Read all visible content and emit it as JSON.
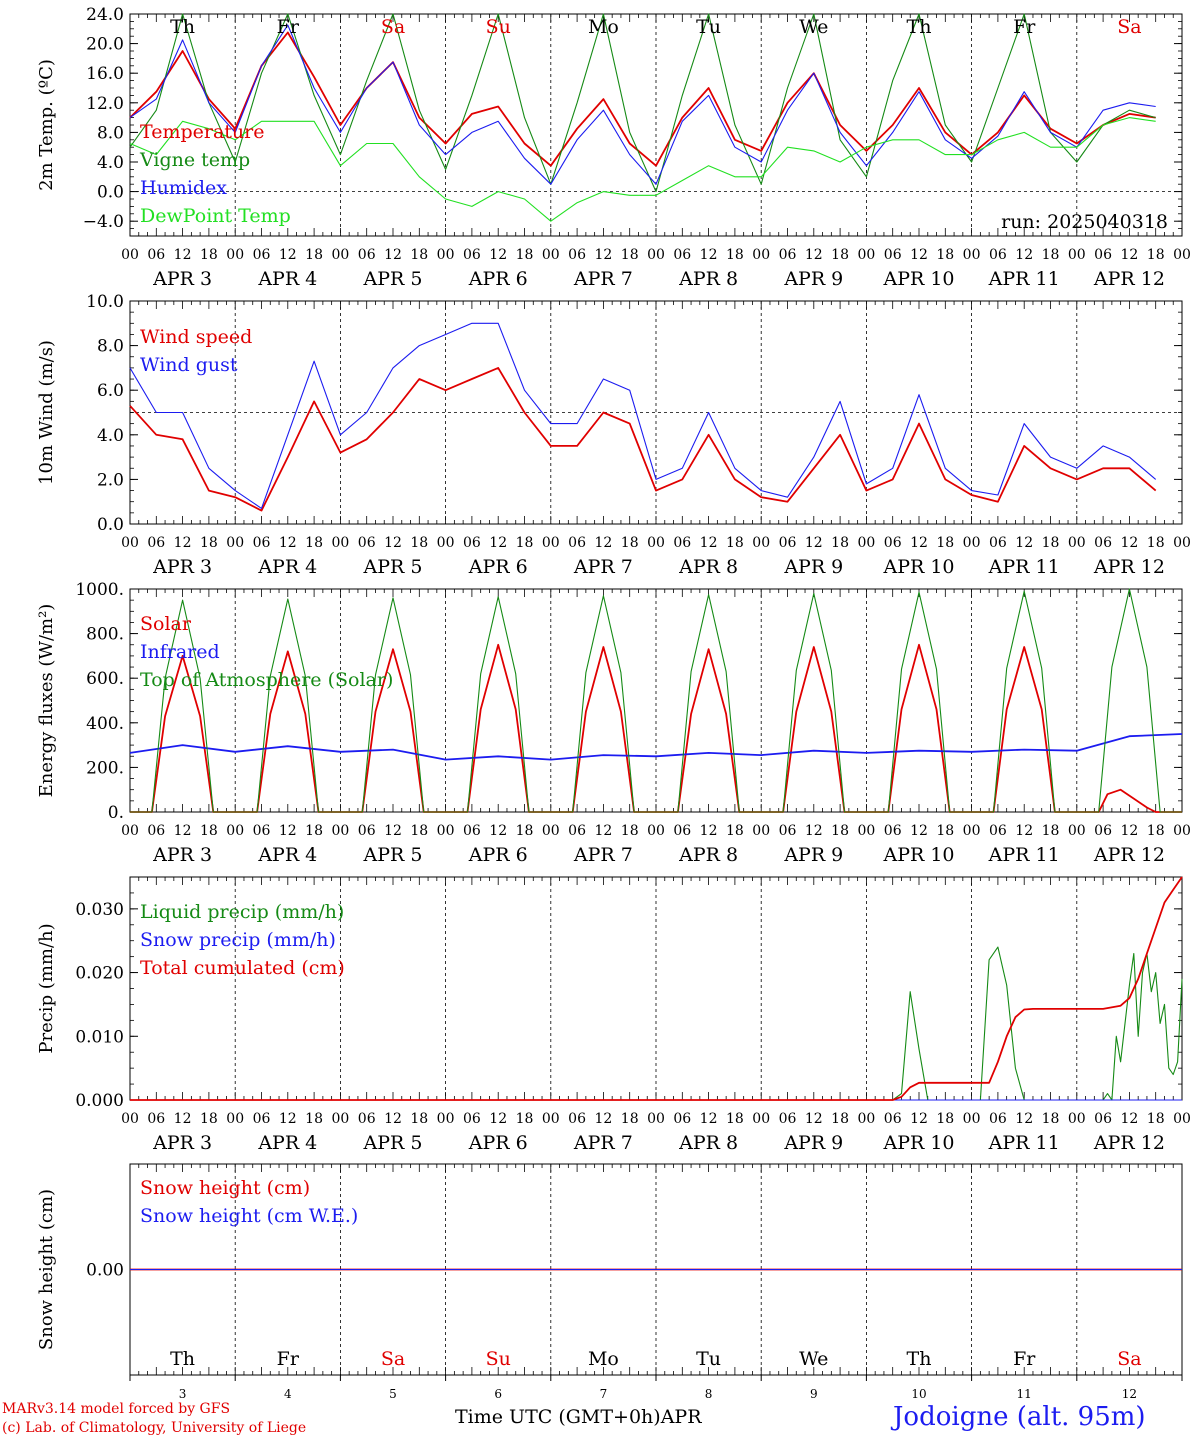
{
  "colors": {
    "red": "#e00000",
    "green": "#158a15",
    "blue": "#1c1cf0",
    "lightgreen": "#22e022",
    "axis": "#000000"
  },
  "days": [
    {
      "abbr": "Th",
      "num": "3",
      "weekend": false
    },
    {
      "abbr": "Fr",
      "num": "4",
      "weekend": false
    },
    {
      "abbr": "Sa",
      "num": "5",
      "weekend": true
    },
    {
      "abbr": "Su",
      "num": "6",
      "weekend": true
    },
    {
      "abbr": "Mo",
      "num": "7",
      "weekend": false
    },
    {
      "abbr": "Tu",
      "num": "8",
      "weekend": false
    },
    {
      "abbr": "We",
      "num": "9",
      "weekend": false
    },
    {
      "abbr": "Th",
      "num": "10",
      "weekend": false
    },
    {
      "abbr": "Fr",
      "num": "11",
      "weekend": false
    },
    {
      "abbr": "Sa",
      "num": "12",
      "weekend": true
    }
  ],
  "month": "APR",
  "hour_labels": [
    "00",
    "06",
    "12",
    "18"
  ],
  "hour_end_label": "00",
  "footer": {
    "model": "MARv3.14 model forced by GFS",
    "lab": "(c) Lab. of Climatology, University of Liege",
    "time_label": "Time UTC (GMT+0h)",
    "month_label": "APR",
    "station": "Jodoigne (alt. 95m)"
  },
  "chart_data": [
    {
      "type": "line",
      "ylabel": "2m Temp. (ºC)",
      "ylim": [
        -6,
        24
      ],
      "yticks": [
        24,
        20,
        16,
        12,
        8,
        4,
        0,
        -4
      ],
      "ytick_labels": [
        "24.0",
        "20.0",
        "16.0",
        "12.0",
        "8.0",
        "4.0",
        "0.0",
        "−4.0"
      ],
      "zero_line": 0,
      "annotation": "run: 2025040318",
      "legend_placement": "left",
      "series": [
        {
          "name": "Temperature",
          "color": "red",
          "hours": [
            0,
            6,
            12,
            18,
            24,
            30,
            36,
            42,
            48,
            54,
            60,
            66,
            72,
            78,
            84,
            90,
            96,
            102,
            108,
            114,
            120,
            126,
            132,
            138,
            144,
            150,
            156,
            162,
            168,
            174,
            180,
            186,
            192,
            198,
            204,
            210,
            216,
            222,
            228,
            234
          ],
          "values": [
            10,
            13.5,
            19,
            12.5,
            8.5,
            17,
            21.5,
            15.5,
            9,
            14,
            17.5,
            10,
            6.5,
            10.5,
            11.5,
            6.5,
            3.5,
            8.5,
            12.5,
            6.5,
            3.5,
            10,
            14,
            7,
            5.5,
            12,
            16,
            9,
            5.5,
            9,
            14,
            8,
            5,
            8,
            13,
            8.5,
            6.5,
            9,
            10.5,
            10
          ]
        },
        {
          "name": "Vigne temp",
          "color": "green",
          "hours": [
            0,
            6,
            12,
            18,
            24,
            30,
            36,
            42,
            48,
            54,
            60,
            66,
            72,
            78,
            84,
            90,
            96,
            102,
            108,
            114,
            120,
            126,
            132,
            138,
            144,
            150,
            156,
            162,
            168,
            174,
            180,
            186,
            192,
            198,
            204,
            210,
            216,
            222,
            228,
            234
          ],
          "values": [
            6,
            11,
            24,
            12,
            4,
            16,
            25,
            13,
            5,
            15,
            24,
            11,
            3,
            13,
            24,
            10,
            1,
            12,
            24,
            8,
            0,
            13,
            24,
            9,
            1,
            14,
            24,
            7,
            2,
            15,
            25,
            9,
            4,
            14,
            25,
            8,
            4,
            9,
            11,
            10
          ]
        },
        {
          "name": "Humidex",
          "color": "blue",
          "hours": [
            0,
            6,
            12,
            18,
            24,
            30,
            36,
            42,
            48,
            54,
            60,
            66,
            72,
            78,
            84,
            90,
            96,
            102,
            108,
            114,
            120,
            126,
            132,
            138,
            144,
            150,
            156,
            162,
            168,
            174,
            180,
            186,
            192,
            198,
            204,
            210,
            216,
            222,
            228,
            234
          ],
          "values": [
            10,
            12.5,
            20.5,
            12,
            8,
            17,
            22.5,
            14,
            8,
            14,
            17.5,
            9,
            5,
            8,
            9.5,
            4.5,
            1,
            7,
            11,
            5,
            1,
            9.5,
            13,
            6,
            4,
            11,
            16,
            8,
            3.5,
            8,
            13.5,
            7,
            4.5,
            7.5,
            13.5,
            8,
            6,
            11,
            12,
            11.5
          ]
        },
        {
          "name": "DewPoint Temp",
          "color": "lightgreen",
          "hours": [
            0,
            6,
            12,
            18,
            24,
            30,
            36,
            42,
            48,
            54,
            60,
            66,
            72,
            78,
            84,
            90,
            96,
            102,
            108,
            114,
            120,
            126,
            132,
            138,
            144,
            150,
            156,
            162,
            168,
            174,
            180,
            186,
            192,
            198,
            204,
            210,
            216,
            222,
            228,
            234
          ],
          "values": [
            6.5,
            5,
            9.5,
            8.5,
            7,
            9.5,
            9.5,
            9.5,
            3.5,
            6.5,
            6.5,
            2,
            -1,
            -2,
            0,
            -1,
            -4,
            -1.5,
            0,
            -0.5,
            -0.5,
            1.5,
            3.5,
            2,
            2,
            6,
            5.5,
            4,
            6,
            7,
            7,
            5,
            5,
            7,
            8,
            6,
            6,
            9,
            10,
            9.5
          ]
        }
      ]
    },
    {
      "type": "line",
      "ylabel": "10m Wind (m/s)",
      "ylim": [
        0,
        10
      ],
      "yticks": [
        10,
        8,
        6,
        4,
        2,
        0
      ],
      "ytick_labels": [
        "10.0",
        "8.0",
        "6.0",
        "4.0",
        "2.0",
        "0.0"
      ],
      "ref_line": 5,
      "legend_placement": "left",
      "series": [
        {
          "name": "Wind speed",
          "color": "red",
          "hours": [
            0,
            6,
            12,
            18,
            24,
            30,
            36,
            42,
            48,
            54,
            60,
            66,
            72,
            78,
            84,
            90,
            96,
            102,
            108,
            114,
            120,
            126,
            132,
            138,
            144,
            150,
            156,
            162,
            168,
            174,
            180,
            186,
            192,
            198,
            204,
            210,
            216,
            222,
            228,
            234
          ],
          "values": [
            5.3,
            4,
            3.8,
            1.5,
            1.2,
            0.6,
            3,
            5.5,
            3.2,
            3.8,
            5,
            6.5,
            6,
            6.5,
            7,
            5,
            3.5,
            3.5,
            5,
            4.5,
            1.5,
            2,
            4,
            2,
            1.2,
            1,
            2.5,
            4,
            1.5,
            2,
            4.5,
            2,
            1.3,
            1,
            3.5,
            2.5,
            2,
            2.5,
            2.5,
            1.5
          ]
        },
        {
          "name": "Wind gust",
          "color": "blue",
          "hours": [
            0,
            6,
            12,
            18,
            24,
            30,
            36,
            42,
            48,
            54,
            60,
            66,
            72,
            78,
            84,
            90,
            96,
            102,
            108,
            114,
            120,
            126,
            132,
            138,
            144,
            150,
            156,
            162,
            168,
            174,
            180,
            186,
            192,
            198,
            204,
            210,
            216,
            222,
            228,
            234
          ],
          "values": [
            7,
            5,
            5,
            2.5,
            1.5,
            0.7,
            4,
            7.3,
            4,
            5,
            7,
            8,
            8.5,
            9,
            9,
            6,
            4.5,
            4.5,
            6.5,
            6,
            2,
            2.5,
            5,
            2.5,
            1.5,
            1.2,
            3,
            5.5,
            1.8,
            2.5,
            5.8,
            2.5,
            1.5,
            1.3,
            4.5,
            3,
            2.5,
            3.5,
            3,
            2
          ]
        }
      ]
    },
    {
      "type": "line",
      "ylabel": "Energy fluxes (W/m²)",
      "ylim": [
        0,
        1000
      ],
      "yticks": [
        1000,
        800,
        600,
        400,
        200,
        0
      ],
      "ytick_labels": [
        "1000.",
        "800.",
        "600.",
        "400.",
        "200.",
        "0."
      ],
      "legend_placement": "left",
      "series": [
        {
          "name": "Solar",
          "color": "red",
          "hours": [
            0,
            5,
            8,
            12,
            16,
            19,
            29,
            32,
            36,
            40,
            43,
            53,
            56,
            60,
            64,
            67,
            77,
            80,
            84,
            88,
            91,
            101,
            104,
            108,
            112,
            115,
            125,
            128,
            132,
            136,
            139,
            149,
            152,
            156,
            160,
            163,
            173,
            176,
            180,
            184,
            187,
            197,
            200,
            204,
            208,
            211,
            221,
            223,
            226,
            229,
            232,
            234,
            240
          ],
          "values": [
            0,
            0,
            430,
            700,
            430,
            0,
            0,
            440,
            720,
            440,
            0,
            0,
            450,
            730,
            450,
            0,
            0,
            460,
            750,
            460,
            0,
            0,
            450,
            740,
            450,
            0,
            0,
            440,
            730,
            440,
            0,
            0,
            450,
            740,
            450,
            0,
            0,
            460,
            750,
            460,
            0,
            0,
            460,
            740,
            460,
            0,
            0,
            80,
            100,
            60,
            20,
            0,
            0
          ]
        },
        {
          "name": "Infrared",
          "color": "blue",
          "hours": [
            0,
            12,
            24,
            36,
            48,
            60,
            72,
            84,
            96,
            108,
            120,
            132,
            144,
            156,
            168,
            180,
            192,
            204,
            216,
            228,
            240
          ],
          "values": [
            265,
            300,
            270,
            295,
            270,
            280,
            235,
            250,
            235,
            255,
            250,
            265,
            255,
            275,
            265,
            275,
            270,
            280,
            275,
            340,
            350
          ]
        },
        {
          "name": "Top of Atmosphere (Solar)",
          "color": "green",
          "hours": [
            0,
            5,
            8,
            12,
            16,
            19,
            29,
            32,
            36,
            40,
            43,
            53,
            56,
            60,
            64,
            67,
            77,
            80,
            84,
            88,
            91,
            101,
            104,
            108,
            112,
            115,
            125,
            128,
            132,
            136,
            139,
            149,
            152,
            156,
            160,
            163,
            173,
            176,
            180,
            184,
            187,
            197,
            200,
            204,
            208,
            211,
            221,
            224,
            228,
            232,
            235,
            240
          ],
          "values": [
            0,
            0,
            600,
            950,
            600,
            0,
            0,
            610,
            955,
            610,
            0,
            0,
            615,
            960,
            615,
            0,
            0,
            620,
            965,
            620,
            0,
            0,
            625,
            970,
            625,
            0,
            0,
            630,
            975,
            630,
            0,
            0,
            635,
            980,
            635,
            0,
            0,
            640,
            985,
            640,
            0,
            0,
            645,
            990,
            645,
            0,
            0,
            650,
            1000,
            650,
            0,
            0
          ]
        }
      ]
    },
    {
      "type": "line",
      "ylabel": "Precip (mm/h)",
      "ylim": [
        0,
        0.035
      ],
      "yticks": [
        0.03,
        0.02,
        0.01,
        0
      ],
      "ytick_labels": [
        "0.030",
        "0.020",
        "0.010",
        "0.000"
      ],
      "legend_placement": "left",
      "series": [
        {
          "name": "Liquid precip (mm/h)",
          "color": "green",
          "hours": [
            0,
            174,
            176,
            178,
            180,
            182,
            184,
            194,
            196,
            198,
            200,
            202,
            204,
            206,
            222,
            223,
            224,
            225,
            226,
            227,
            228,
            229,
            230,
            231,
            232,
            233,
            234,
            235,
            236,
            237,
            238,
            239,
            240
          ],
          "values": [
            0,
            0,
            0.001,
            0.017,
            0.008,
            0,
            0,
            0,
            0.022,
            0.024,
            0.018,
            0.005,
            0,
            0,
            0,
            0.001,
            0,
            0.01,
            0.006,
            0.012,
            0.018,
            0.023,
            0.01,
            0.02,
            0.023,
            0.017,
            0.02,
            0.012,
            0.015,
            0.005,
            0.004,
            0.006,
            0.019
          ]
        },
        {
          "name": "Snow precip (mm/h)",
          "color": "blue",
          "hours": [
            0,
            240
          ],
          "values": [
            0,
            0
          ]
        },
        {
          "name": "Total cumulated (cm)",
          "color": "red",
          "hours": [
            0,
            174,
            176,
            178,
            180,
            182,
            196,
            198,
            200,
            202,
            204,
            206,
            208,
            222,
            226,
            228,
            230,
            232,
            234,
            236,
            238,
            240
          ],
          "values": [
            0,
            0,
            0.0005,
            0.002,
            0.0027,
            0.0027,
            0.0027,
            0.006,
            0.01,
            0.013,
            0.0142,
            0.0143,
            0.0143,
            0.0143,
            0.0148,
            0.016,
            0.019,
            0.023,
            0.027,
            0.031,
            0.033,
            0.035
          ]
        }
      ]
    },
    {
      "type": "line",
      "ylabel": "Snow height (cm)",
      "ylim": [
        -1,
        1
      ],
      "yticks": [
        0
      ],
      "ytick_labels": [
        "0.00"
      ],
      "legend_placement": "left",
      "series": [
        {
          "name": "Snow height (cm)",
          "color": "red",
          "hours": [
            0,
            240
          ],
          "values": [
            0,
            0
          ]
        },
        {
          "name": "Snow height (cm W.E.)",
          "color": "blue",
          "hours": [
            0,
            240
          ],
          "values": [
            0,
            0
          ]
        }
      ]
    }
  ]
}
